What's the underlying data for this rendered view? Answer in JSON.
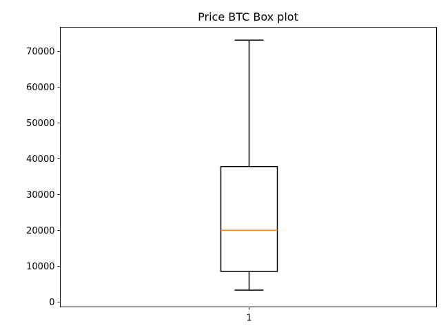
{
  "chart_data": {
    "type": "box",
    "title": "Price BTC Box plot",
    "xlabel": "",
    "ylabel": "",
    "categories": [
      "1"
    ],
    "boxes": [
      {
        "category": "1",
        "whisker_low": 3300,
        "q1": 8500,
        "median": 20000,
        "q3": 37800,
        "whisker_high": 73100
      }
    ],
    "ylim": [
      -1400,
      76700
    ],
    "yticks": [
      0,
      10000,
      20000,
      30000,
      40000,
      50000,
      60000,
      70000
    ],
    "ytick_labels": [
      "0",
      "10000",
      "20000",
      "30000",
      "40000",
      "50000",
      "60000",
      "70000"
    ],
    "grid": false,
    "colors": {
      "box": "#000000",
      "median": "#ff7f0e",
      "whisker": "#000000"
    }
  }
}
